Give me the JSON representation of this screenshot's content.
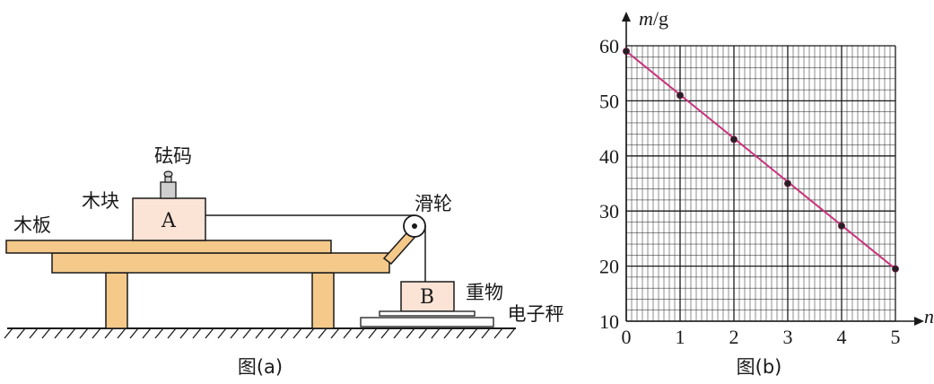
{
  "figure_a": {
    "caption": "图(a)",
    "labels": {
      "weight": "砝码",
      "block": "木块",
      "board": "木板",
      "pulley": "滑轮",
      "heavy": "重物",
      "scale": "电子秤",
      "block_letter": "A",
      "heavy_letter": "B"
    },
    "colors": {
      "wood": "#f5c98a",
      "block": "#fbe3d6",
      "outline": "#1a1a1a"
    }
  },
  "figure_b": {
    "caption": "图(b)",
    "line_color": "#c8327a"
  },
  "chart_data": {
    "type": "scatter",
    "xlabel": "n",
    "ylabel": "m/g",
    "xlim": [
      0,
      5
    ],
    "ylim": [
      10,
      60
    ],
    "x_ticks": [
      "0",
      "1",
      "2",
      "3",
      "4",
      "5"
    ],
    "y_ticks": [
      "10",
      "20",
      "30",
      "40",
      "50",
      "60"
    ],
    "points": [
      {
        "x": 0,
        "y": 59
      },
      {
        "x": 1,
        "y": 51
      },
      {
        "x": 2,
        "y": 43
      },
      {
        "x": 3,
        "y": 35
      },
      {
        "x": 4,
        "y": 27.3
      },
      {
        "x": 5,
        "y": 19.5
      }
    ],
    "fit_line": {
      "from": {
        "x": 0,
        "y": 59
      },
      "to": {
        "x": 5,
        "y": 19.5
      }
    },
    "grid": true
  }
}
